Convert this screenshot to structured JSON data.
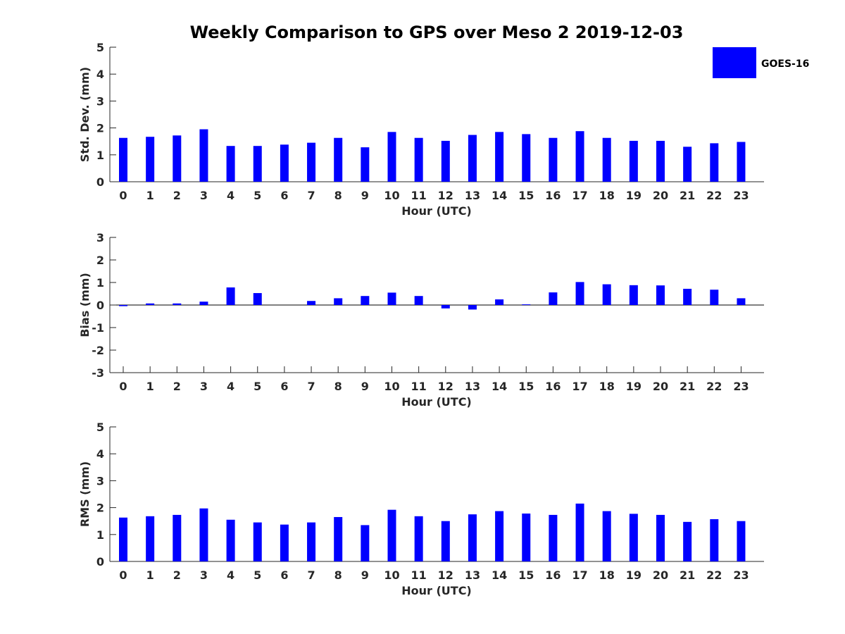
{
  "chart_data": {
    "title": "Weekly Comparison to GPS over Meso 2 2019-12-03",
    "legend": {
      "label": "GOES-16",
      "color": "#0000ff",
      "placement": "top-right"
    },
    "type": "bar",
    "panels": [
      {
        "type": "bar",
        "ylabel": "Std. Dev. (mm)",
        "xlabel": "Hour (UTC)",
        "ylim": [
          0,
          5
        ],
        "yticks": [
          0,
          1,
          2,
          3,
          4,
          5
        ],
        "categories": [
          0,
          1,
          2,
          3,
          4,
          5,
          6,
          7,
          8,
          9,
          10,
          11,
          12,
          13,
          14,
          15,
          16,
          17,
          18,
          19,
          20,
          21,
          22,
          23
        ],
        "series": [
          {
            "name": "GOES-16",
            "values": [
              1.63,
              1.67,
              1.72,
              1.95,
              1.33,
              1.33,
              1.38,
              1.45,
              1.63,
              1.28,
              1.85,
              1.63,
              1.52,
              1.74,
              1.85,
              1.77,
              1.63,
              1.88,
              1.63,
              1.52,
              1.52,
              1.3,
              1.43,
              1.48
            ]
          }
        ]
      },
      {
        "type": "bar",
        "ylabel": "Bias (mm)",
        "xlabel": "Hour (UTC)",
        "ylim": [
          -3,
          3
        ],
        "yticks": [
          -3,
          -2,
          -1,
          0,
          1,
          2,
          3
        ],
        "categories": [
          0,
          1,
          2,
          3,
          4,
          5,
          6,
          7,
          8,
          9,
          10,
          11,
          12,
          13,
          14,
          15,
          16,
          17,
          18,
          19,
          20,
          21,
          22,
          23
        ],
        "series": [
          {
            "name": "GOES-16",
            "values": [
              -0.05,
              0.07,
              0.07,
              0.15,
              0.78,
              0.53,
              0.0,
              0.18,
              0.3,
              0.4,
              0.55,
              0.4,
              -0.15,
              -0.2,
              0.25,
              0.03,
              0.56,
              1.02,
              0.92,
              0.88,
              0.87,
              0.72,
              0.68,
              0.3
            ]
          }
        ]
      },
      {
        "type": "bar",
        "ylabel": "RMS (mm)",
        "xlabel": "Hour (UTC)",
        "ylim": [
          0,
          5
        ],
        "yticks": [
          0,
          1,
          2,
          3,
          4,
          5
        ],
        "categories": [
          0,
          1,
          2,
          3,
          4,
          5,
          6,
          7,
          8,
          9,
          10,
          11,
          12,
          13,
          14,
          15,
          16,
          17,
          18,
          19,
          20,
          21,
          22,
          23
        ],
        "series": [
          {
            "name": "GOES-16",
            "values": [
              1.63,
              1.68,
              1.73,
              1.97,
              1.55,
              1.45,
              1.37,
              1.45,
              1.65,
              1.35,
              1.92,
              1.68,
              1.5,
              1.75,
              1.87,
              1.78,
              1.73,
              2.15,
              1.87,
              1.77,
              1.73,
              1.47,
              1.57,
              1.5
            ]
          }
        ]
      }
    ]
  }
}
